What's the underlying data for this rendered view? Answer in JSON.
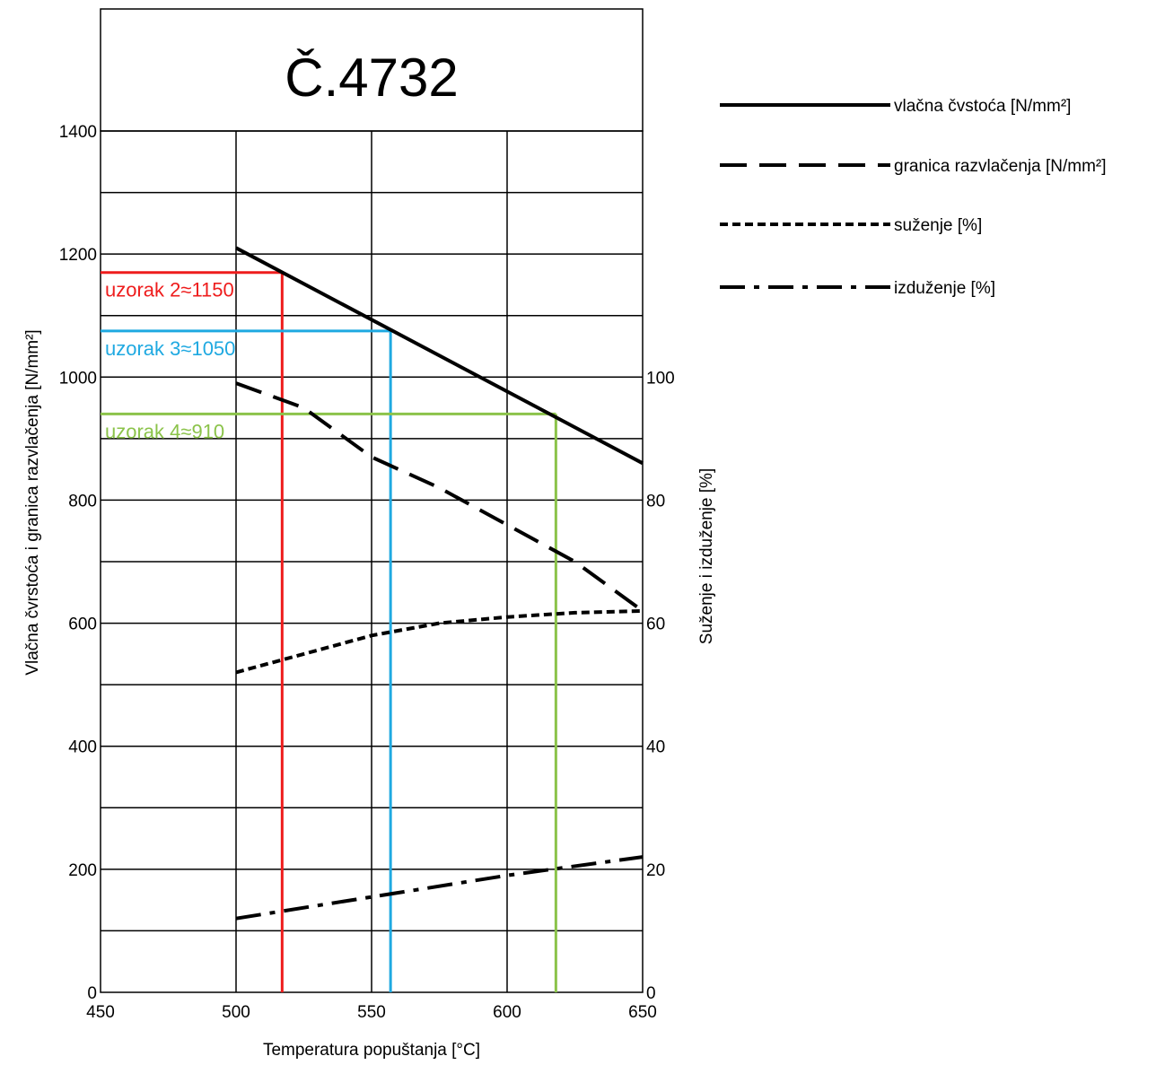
{
  "chart_data": {
    "type": "line",
    "title": "Č.4732",
    "xlabel": "Temperatura popuštanja [°C]",
    "ylabel": "Vlačna čvrstoća i granica razvlačenja  [N/mm²]",
    "y2label": "Suženje i izduženje   [%]",
    "xlim": [
      450,
      650
    ],
    "ylim": [
      0,
      1400
    ],
    "y2lim": [
      0,
      140
    ],
    "x_ticks": [
      "450",
      "500",
      "550",
      "600",
      "650"
    ],
    "y_ticks": [
      "0",
      "200",
      "400",
      "600",
      "800",
      "1000",
      "1200",
      "1400"
    ],
    "y2_ticks": [
      "0",
      "20",
      "40",
      "60",
      "80",
      "100"
    ],
    "grid": true,
    "legend_position": "right",
    "series": [
      {
        "name": "vlačna čvstoća [N/mm²]",
        "axis": "left",
        "style": "solid",
        "points": [
          [
            500,
            1210
          ],
          [
            650,
            860
          ]
        ]
      },
      {
        "name": "granica razvlačenja [N/mm²]",
        "axis": "left",
        "style": "dashed",
        "points": [
          [
            500,
            990
          ],
          [
            525,
            950
          ],
          [
            550,
            870
          ],
          [
            575,
            820
          ],
          [
            600,
            760
          ],
          [
            625,
            700
          ],
          [
            650,
            620
          ]
        ]
      },
      {
        "name": "suženje [%]",
        "axis": "right",
        "style": "dotted",
        "points": [
          [
            500,
            52
          ],
          [
            525,
            55
          ],
          [
            550,
            58
          ],
          [
            575,
            60
          ],
          [
            600,
            61
          ],
          [
            625,
            61.7
          ],
          [
            650,
            62
          ]
        ]
      },
      {
        "name": "izduženje [%]",
        "axis": "right",
        "style": "dashdot",
        "points": [
          [
            500,
            12
          ],
          [
            550,
            15.5
          ],
          [
            600,
            19
          ],
          [
            650,
            22
          ]
        ]
      }
    ],
    "annotations": [
      {
        "label": "uzorak 2≈1150",
        "color": "#ee1c1c",
        "x": 517,
        "y": 1170
      },
      {
        "label": "uzorak 3≈1050",
        "color": "#1fa9e1",
        "x": 557,
        "y": 1075
      },
      {
        "label": "uzorak 4≈910",
        "color": "#8bc34a",
        "x": 618,
        "y": 940
      }
    ]
  }
}
